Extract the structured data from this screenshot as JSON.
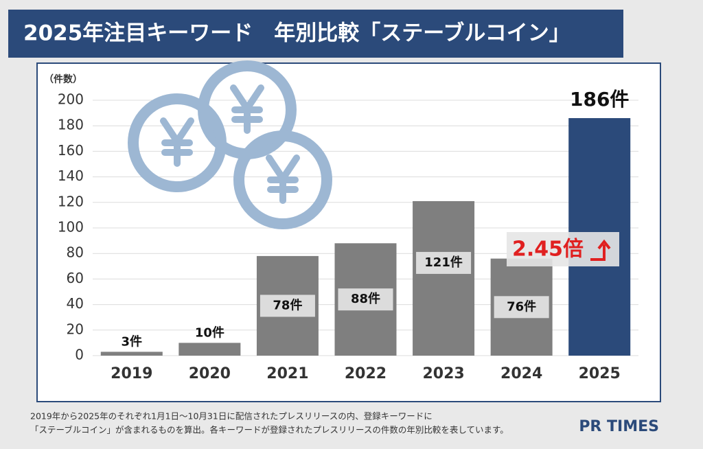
{
  "chart_data": {
    "type": "bar",
    "title": "2025年注目キーワード　年別比較「ステーブルコイン」",
    "y_axis_label": "（件数）",
    "categories": [
      "2019",
      "2020",
      "2021",
      "2022",
      "2023",
      "2024",
      "2025"
    ],
    "values": [
      3,
      10,
      78,
      88,
      121,
      76,
      186
    ],
    "value_labels": [
      "3件",
      "10件",
      "78件",
      "88件",
      "121件",
      "76件",
      "186件"
    ],
    "colors": [
      "#7f7f7f",
      "#7f7f7f",
      "#7f7f7f",
      "#7f7f7f",
      "#7f7f7f",
      "#7f7f7f",
      "#2b4a7a"
    ],
    "ylim": [
      0,
      200
    ],
    "yticks": [
      0,
      20,
      40,
      60,
      80,
      100,
      120,
      140,
      160,
      180,
      200
    ],
    "grid": true,
    "annotation": "2.45倍",
    "footnote": [
      "2019年から2025年のそれぞれ1月1日〜10月31日に配信されたプレスリリースの内、登録キーワードに",
      "「ステーブルコイン」が含まれるものを算出。各キーワードが登録されたプレスリリースの件数の年別比較を表しています。"
    ],
    "logo": "PR TIMES"
  }
}
